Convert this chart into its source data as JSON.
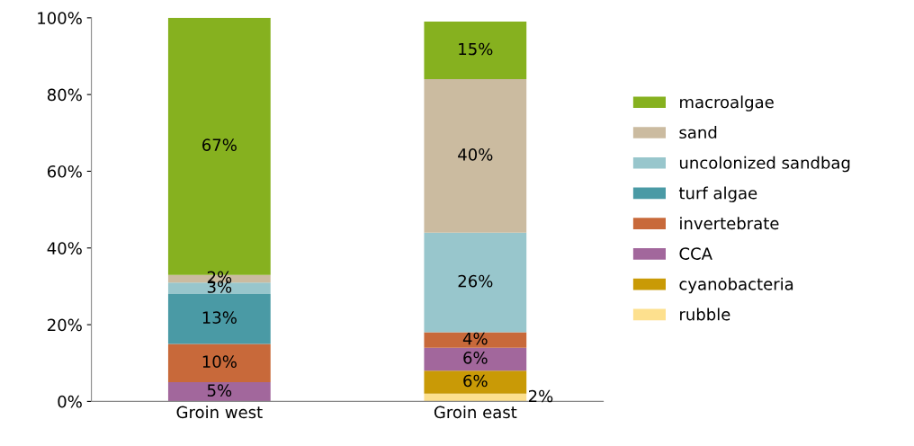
{
  "chart_data": {
    "type": "bar",
    "stacked": true,
    "categories": [
      "Groin west",
      "Groin east"
    ],
    "series": [
      {
        "name": "rubble",
        "color": "#fde08e",
        "values": [
          0,
          2
        ],
        "value_labels": [
          null,
          "2%"
        ]
      },
      {
        "name": "cyanobacteria",
        "color": "#c99a06",
        "values": [
          0,
          6
        ],
        "value_labels": [
          null,
          "6%"
        ]
      },
      {
        "name": "CCA",
        "color": "#a2679c",
        "values": [
          5,
          6
        ],
        "value_labels": [
          "5%",
          "6%"
        ]
      },
      {
        "name": "invertebrate",
        "color": "#c8693a",
        "values": [
          10,
          4
        ],
        "value_labels": [
          "10%",
          "4%"
        ]
      },
      {
        "name": "turf algae",
        "color": "#4a9aa5",
        "values": [
          13,
          0
        ],
        "value_labels": [
          "13%",
          null
        ]
      },
      {
        "name": "uncolonized sandbag",
        "color": "#98c6cc",
        "values": [
          3,
          26
        ],
        "value_labels": [
          "3%",
          "26%"
        ]
      },
      {
        "name": "sand",
        "color": "#cbbba0",
        "values": [
          2,
          40
        ],
        "value_labels": [
          "2%",
          "40%"
        ]
      },
      {
        "name": "macroalgae",
        "color": "#86b11f",
        "values": [
          67,
          15
        ],
        "value_labels": [
          "67%",
          "15%"
        ]
      }
    ],
    "ylim": [
      0,
      100
    ],
    "yticks": [
      {
        "value": 0,
        "label": "0%"
      },
      {
        "value": 20,
        "label": "20%"
      },
      {
        "value": 40,
        "label": "40%"
      },
      {
        "value": 60,
        "label": "60%"
      },
      {
        "value": 80,
        "label": "80%"
      },
      {
        "value": 100,
        "label": "100%"
      }
    ],
    "grid": false,
    "legend": "right"
  }
}
